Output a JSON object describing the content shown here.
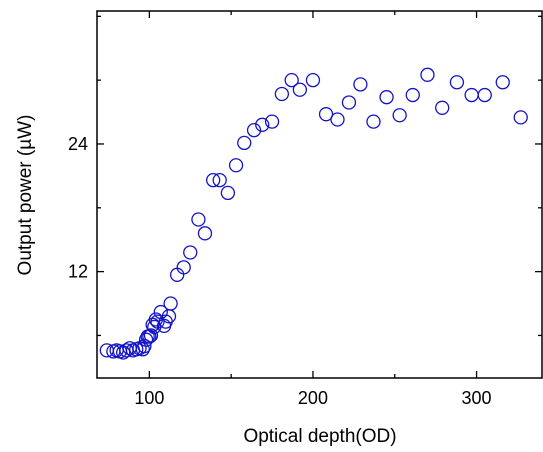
{
  "chart_data": {
    "type": "scatter",
    "title": "",
    "xlabel": "Optical depth(OD)",
    "ylabel": "Output power (µW)",
    "xlim": [
      68,
      340
    ],
    "ylim": [
      2,
      36.5
    ],
    "xticks": [
      100,
      200,
      300
    ],
    "yticks": [
      12,
      24
    ],
    "xtick_labels": [
      "100",
      "200",
      "300"
    ],
    "ytick_labels": [
      "12",
      "24"
    ],
    "grid": false,
    "legend": "none",
    "marker": "open-circle",
    "marker_color": "#1414c8",
    "series": [
      {
        "x": [
          74,
          78,
          80,
          82,
          84,
          86,
          88,
          90,
          92,
          94,
          96,
          97,
          98,
          99,
          100,
          101,
          102,
          103,
          104,
          105,
          107,
          109,
          110,
          112,
          113,
          117,
          121,
          125,
          130,
          134,
          139,
          143,
          148,
          153,
          158,
          164,
          169,
          175,
          181,
          187,
          192,
          200,
          208,
          215,
          222,
          229,
          237,
          245,
          253,
          261,
          270,
          279,
          288,
          297,
          305,
          316,
          327
        ],
        "y": [
          4.6,
          4.5,
          4.6,
          4.5,
          4.4,
          4.6,
          4.8,
          4.6,
          4.7,
          4.8,
          4.7,
          5.0,
          5.6,
          5.9,
          5.9,
          6.0,
          7.0,
          6.8,
          7.5,
          7.3,
          8.2,
          6.9,
          7.3,
          7.8,
          9.0,
          11.7,
          12.4,
          13.8,
          16.9,
          15.6,
          20.6,
          20.6,
          19.4,
          22.0,
          24.1,
          25.3,
          25.8,
          26.1,
          28.7,
          30.0,
          29.1,
          30.0,
          26.8,
          26.3,
          27.9,
          29.6,
          26.1,
          28.4,
          26.7,
          28.6,
          30.5,
          27.4,
          29.8,
          28.6,
          28.6,
          29.8,
          26.5
        ]
      }
    ]
  }
}
